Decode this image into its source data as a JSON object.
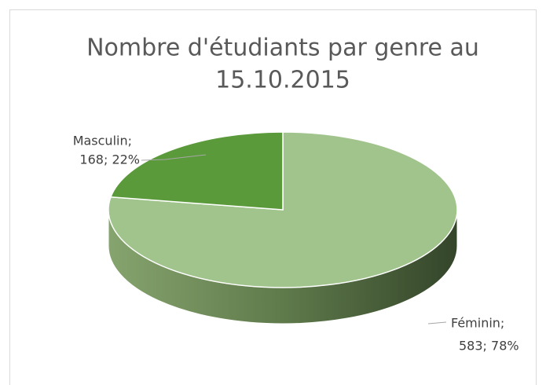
{
  "chart_data": {
    "type": "pie3d",
    "title": [
      "Nombre d'étudiants par genre au",
      "15.10.2015"
    ],
    "categories": [
      "Féminin;",
      "Masculin;"
    ],
    "values": [
      583,
      168
    ],
    "value_labels": [
      "583; 78%",
      "168; 22%"
    ],
    "colors": [
      "#a0c48c",
      "#5b9a3b"
    ]
  }
}
